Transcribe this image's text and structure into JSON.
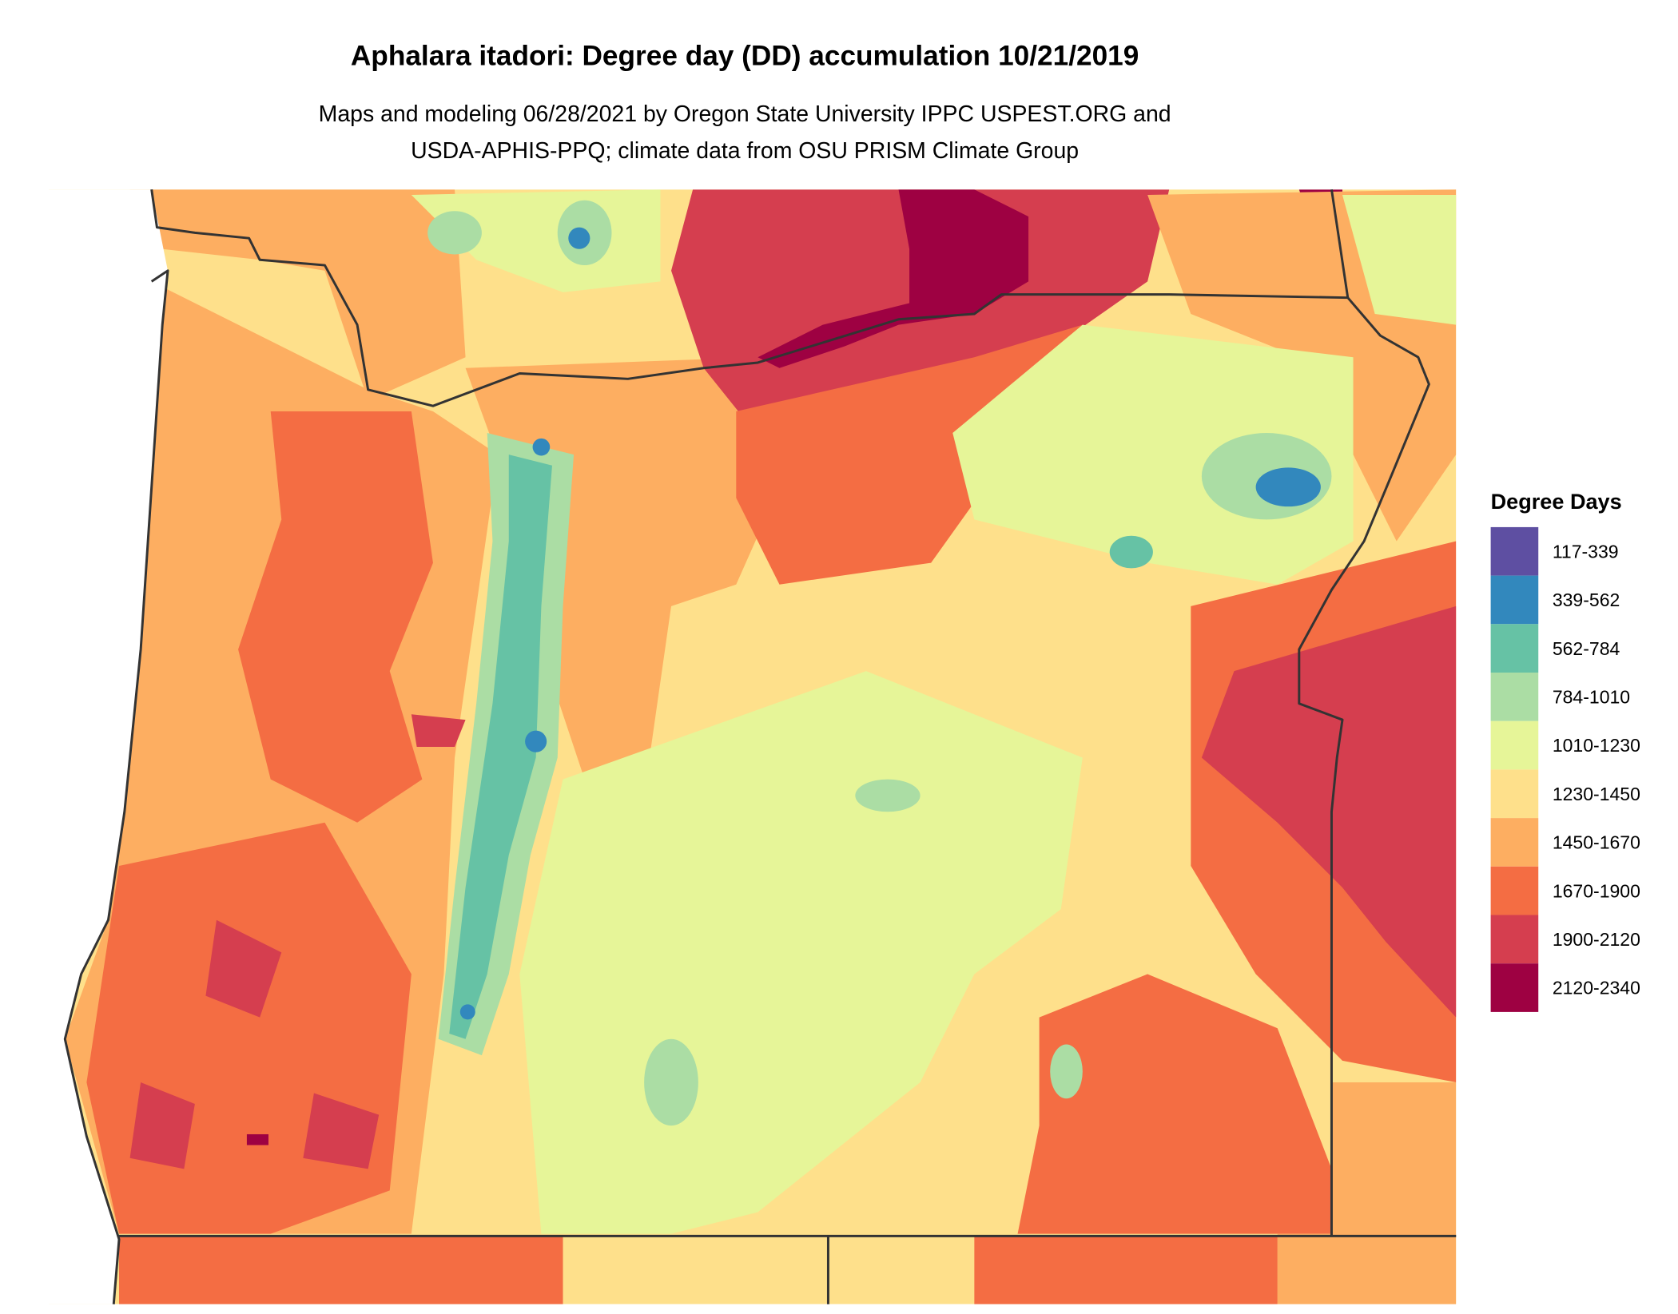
{
  "title": "Aphalara itadori: Degree day (DD) accumulation 10/21/2019",
  "subtitle": [
    "Maps and modeling 06/28/2021 by Oregon State University IPPC USPEST.ORG and",
    "USDA-APHIS-PPQ; climate data from OSU PRISM Climate Group"
  ],
  "legend": {
    "title": "Degree Days",
    "items": [
      {
        "label": "117-339",
        "color": "#5e4fa2"
      },
      {
        "label": "339-562",
        "color": "#3288bd"
      },
      {
        "label": "562-784",
        "color": "#66c2a5"
      },
      {
        "label": "784-1010",
        "color": "#abdda4"
      },
      {
        "label": "1010-1230",
        "color": "#e6f598"
      },
      {
        "label": "1230-1450",
        "color": "#fee08b"
      },
      {
        "label": "1450-1670",
        "color": "#fdae61"
      },
      {
        "label": "1670-1900",
        "color": "#f46d43"
      },
      {
        "label": "1900-2120",
        "color": "#d53e4f"
      },
      {
        "label": "2120-2340",
        "color": "#9e0142"
      }
    ]
  }
}
